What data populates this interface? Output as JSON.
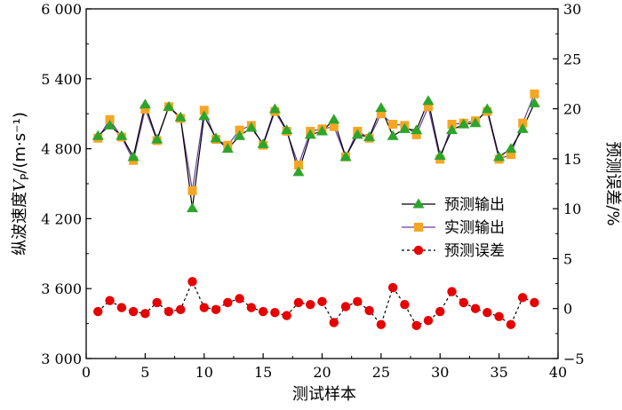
{
  "chart_data": {
    "type": "line",
    "xlabel": "测试样本",
    "ylabel_left_prefix": "纵波速度",
    "ylabel_left_var": "V",
    "ylabel_left_sub": "P",
    "ylabel_left_unit": "/(m·s⁻¹)",
    "ylabel_right": "预测误差/%",
    "xlim": [
      0,
      40
    ],
    "ylim_left": [
      3000,
      6000
    ],
    "ylim_right": [
      -5,
      30
    ],
    "x_ticks": [
      "0",
      "5",
      "10",
      "15",
      "20",
      "25",
      "30",
      "35",
      "40"
    ],
    "y_ticks_left": [
      "3 000",
      "3 600",
      "4 200",
      "4 800",
      "5 400",
      "6 000"
    ],
    "y_ticks_right": [
      "−5",
      "0",
      "5",
      "10",
      "15",
      "20",
      "25",
      "30"
    ],
    "legend_position": "center-right",
    "x": [
      1,
      2,
      3,
      4,
      5,
      6,
      7,
      8,
      9,
      10,
      11,
      12,
      13,
      14,
      15,
      16,
      17,
      18,
      19,
      20,
      21,
      22,
      23,
      24,
      25,
      26,
      27,
      28,
      29,
      30,
      31,
      32,
      33,
      34,
      35,
      36,
      37,
      38
    ],
    "series": [
      {
        "name": "预测输出",
        "axis": "left",
        "marker": "triangle",
        "color": "#2ca52c",
        "line_color": "#000000",
        "values": [
          4910,
          5000,
          4910,
          4730,
          5180,
          4880,
          5160,
          5070,
          4290,
          5080,
          4890,
          4800,
          4910,
          4980,
          4840,
          5140,
          4960,
          4600,
          4920,
          4950,
          5050,
          4730,
          4920,
          4900,
          5150,
          4910,
          4970,
          4960,
          5210,
          4740,
          4960,
          5010,
          5020,
          5140,
          4730,
          4800,
          4970,
          5190
        ]
      },
      {
        "name": "实测输出",
        "axis": "left",
        "marker": "square",
        "color": "#f5a623",
        "line_color": "#6a3d9a",
        "values": [
          4890,
          5050,
          4900,
          4700,
          5140,
          4870,
          5160,
          5060,
          4440,
          5130,
          4880,
          4830,
          4960,
          5000,
          4830,
          5120,
          4950,
          4660,
          4950,
          4970,
          4990,
          4730,
          4950,
          4890,
          5100,
          5010,
          5000,
          4920,
          5160,
          4710,
          5010,
          5020,
          5040,
          5120,
          4710,
          4750,
          5020,
          5270
        ]
      },
      {
        "name": "预测误差",
        "axis": "right",
        "marker": "circle",
        "color": "#e60000",
        "line_color": "#000000",
        "dashed": true,
        "values": [
          -0.3,
          0.8,
          0.1,
          -0.3,
          -0.5,
          0.6,
          -0.3,
          -0.1,
          2.7,
          0.1,
          -0.1,
          0.6,
          1.0,
          0.1,
          -0.3,
          -0.4,
          -0.7,
          0.6,
          0.4,
          0.7,
          -1.4,
          0.2,
          0.7,
          -0.2,
          -1.6,
          2.1,
          0.4,
          -1.7,
          -1.2,
          -0.3,
          1.7,
          0.6,
          0,
          -0.4,
          -0.8,
          -1.6,
          1.1,
          0.6
        ]
      }
    ]
  }
}
